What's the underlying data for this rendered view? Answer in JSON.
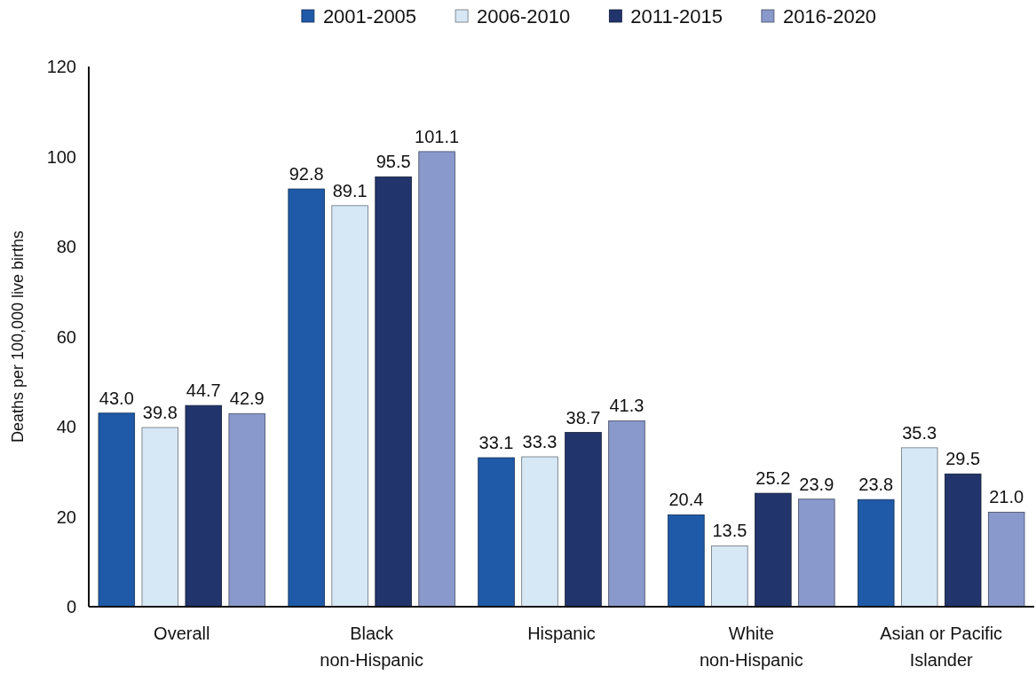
{
  "chart_data": {
    "type": "bar",
    "ylabel": "Deaths per 100,000 live births",
    "categories": [
      "Overall",
      "Black\nnon-Hispanic",
      "Hispanic",
      "White\nnon-Hispanic",
      "Asian or Pacific\nIslander"
    ],
    "series": [
      {
        "name": "2001-2005",
        "color": "#1f5aa8",
        "values": [
          43.0,
          92.8,
          33.1,
          20.4,
          23.8
        ],
        "value_labels": [
          "43.0",
          "92.8",
          "33.1",
          "20.4",
          "23.8"
        ]
      },
      {
        "name": "2006-2010",
        "color": "#d6e8f6",
        "values": [
          39.8,
          89.1,
          33.3,
          13.5,
          35.3
        ],
        "value_labels": [
          "39.8",
          "89.1",
          "33.3",
          "13.5",
          "35.3"
        ]
      },
      {
        "name": "2011-2015",
        "color": "#21346b",
        "values": [
          44.7,
          95.5,
          38.7,
          25.2,
          29.5
        ],
        "value_labels": [
          "44.7",
          "95.5",
          "38.7",
          "25.2",
          "29.5"
        ]
      },
      {
        "name": "2016-2020",
        "color": "#8a99cb",
        "values": [
          42.9,
          101.1,
          41.3,
          23.9,
          21.0
        ],
        "value_labels": [
          "42.9",
          "101.1",
          "41.3",
          "23.9",
          "21.0"
        ]
      }
    ],
    "ylim": [
      0,
      120
    ],
    "yticks": [
      0,
      20,
      40,
      60,
      80,
      100,
      120
    ],
    "grid": false,
    "legend": "top"
  }
}
